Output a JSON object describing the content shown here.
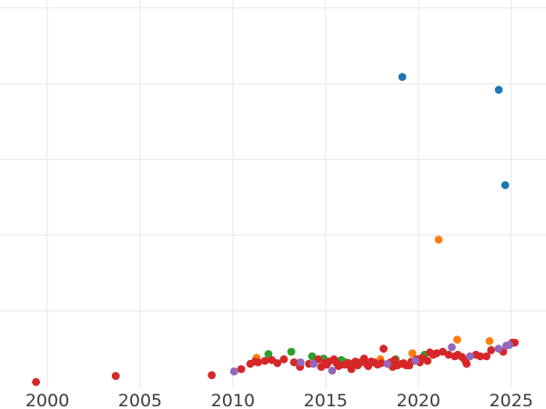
{
  "chart_data": {
    "type": "scatter",
    "title": "",
    "xlabel": "",
    "ylabel": "",
    "grid": true,
    "x_ticks": [
      {
        "label": "2000",
        "year": 2000
      },
      {
        "label": "2005",
        "year": 2005
      },
      {
        "label": "2010",
        "year": 2010
      },
      {
        "label": "2015",
        "year": 2015
      },
      {
        "label": "2020",
        "year": 2020
      },
      {
        "label": "2025",
        "year": 2025
      }
    ],
    "x_range_years": [
      1997.45,
      2026.9
    ],
    "y_axis_note": "y tick labels not visible in image; y values given in gridline units above lowest visible data band",
    "y_gridline_units": [
      1,
      2,
      3,
      4,
      5
    ],
    "marker_radius_px": 4.4,
    "colors": {
      "blue": "#1f77b4",
      "orange": "#ff7f0e",
      "green": "#2ca02c",
      "red": "#d62728",
      "purple": "#9467bd",
      "gridline": "#e6e6e6",
      "tick_label": "#3d3d3d",
      "background": "#ffffff"
    },
    "series": [
      {
        "name": "blue",
        "color": "#1f77b4",
        "points": [
          [
            2019.13,
            4.09
          ],
          [
            2024.33,
            3.92
          ],
          [
            2024.68,
            2.66
          ]
        ]
      },
      {
        "name": "orange",
        "color": "#ff7f0e",
        "points": [
          [
            2011.28,
            0.38
          ],
          [
            2017.95,
            0.36
          ],
          [
            2019.67,
            0.44
          ],
          [
            2021.09,
            1.94
          ],
          [
            2022.09,
            0.62
          ],
          [
            2023.83,
            0.6
          ]
        ]
      },
      {
        "name": "green",
        "color": "#2ca02c",
        "points": [
          [
            2011.92,
            0.43
          ],
          [
            2013.15,
            0.46
          ],
          [
            2014.27,
            0.4
          ],
          [
            2014.89,
            0.37
          ],
          [
            2015.84,
            0.35
          ],
          [
            2016.07,
            0.32
          ],
          [
            2018.77,
            0.36
          ],
          [
            2020.33,
            0.42
          ]
        ]
      },
      {
        "name": "red",
        "color": "#d62728",
        "points": [
          [
            1999.39,
            0.06
          ],
          [
            2003.69,
            0.14
          ],
          [
            2008.86,
            0.15
          ],
          [
            2010.45,
            0.23
          ],
          [
            2010.94,
            0.3
          ],
          [
            2011.19,
            0.33
          ],
          [
            2011.36,
            0.32
          ],
          [
            2011.73,
            0.34
          ],
          [
            2012.1,
            0.35
          ],
          [
            2012.4,
            0.31
          ],
          [
            2012.75,
            0.36
          ],
          [
            2013.3,
            0.32
          ],
          [
            2013.62,
            0.26
          ],
          [
            2014.1,
            0.3
          ],
          [
            2014.6,
            0.36
          ],
          [
            2014.76,
            0.26
          ],
          [
            2014.96,
            0.31
          ],
          [
            2015.05,
            0.29
          ],
          [
            2015.18,
            0.33
          ],
          [
            2015.45,
            0.36
          ],
          [
            2015.59,
            0.31
          ],
          [
            2015.7,
            0.27
          ],
          [
            2016.0,
            0.29
          ],
          [
            2016.15,
            0.29
          ],
          [
            2016.25,
            0.31
          ],
          [
            2016.39,
            0.23
          ],
          [
            2016.5,
            0.29
          ],
          [
            2016.6,
            0.33
          ],
          [
            2016.73,
            0.28
          ],
          [
            2016.9,
            0.32
          ],
          [
            2017.07,
            0.37
          ],
          [
            2017.24,
            0.29
          ],
          [
            2017.3,
            0.27
          ],
          [
            2017.45,
            0.33
          ],
          [
            2017.6,
            0.32
          ],
          [
            2017.8,
            0.29
          ],
          [
            2018.0,
            0.31
          ],
          [
            2018.12,
            0.5
          ],
          [
            2018.5,
            0.32
          ],
          [
            2018.61,
            0.26
          ],
          [
            2018.72,
            0.35
          ],
          [
            2018.86,
            0.28
          ],
          [
            2019.1,
            0.3
          ],
          [
            2019.2,
            0.31
          ],
          [
            2019.35,
            0.28
          ],
          [
            2019.51,
            0.28
          ],
          [
            2019.62,
            0.33
          ],
          [
            2019.9,
            0.36
          ],
          [
            2020.08,
            0.32
          ],
          [
            2020.2,
            0.38
          ],
          [
            2020.49,
            0.34
          ],
          [
            2020.62,
            0.45
          ],
          [
            2020.8,
            0.42
          ],
          [
            2020.98,
            0.44
          ],
          [
            2021.31,
            0.46
          ],
          [
            2021.63,
            0.42
          ],
          [
            2021.96,
            0.4
          ],
          [
            2022.12,
            0.42
          ],
          [
            2022.35,
            0.39
          ],
          [
            2022.53,
            0.34
          ],
          [
            2022.6,
            0.3
          ],
          [
            2023.1,
            0.42
          ],
          [
            2023.33,
            0.4
          ],
          [
            2023.67,
            0.4
          ],
          [
            2023.92,
            0.48
          ],
          [
            2024.57,
            0.46
          ],
          [
            2025.06,
            0.58
          ],
          [
            2025.19,
            0.58
          ]
        ]
      },
      {
        "name": "purple",
        "color": "#9467bd",
        "points": [
          [
            2010.07,
            0.2
          ],
          [
            2013.65,
            0.32
          ],
          [
            2014.35,
            0.3
          ],
          [
            2015.35,
            0.21
          ],
          [
            2018.33,
            0.3
          ],
          [
            2019.84,
            0.34
          ],
          [
            2021.8,
            0.52
          ],
          [
            2022.78,
            0.4
          ],
          [
            2024.32,
            0.5
          ],
          [
            2024.74,
            0.54
          ],
          [
            2024.9,
            0.55
          ]
        ]
      }
    ]
  }
}
